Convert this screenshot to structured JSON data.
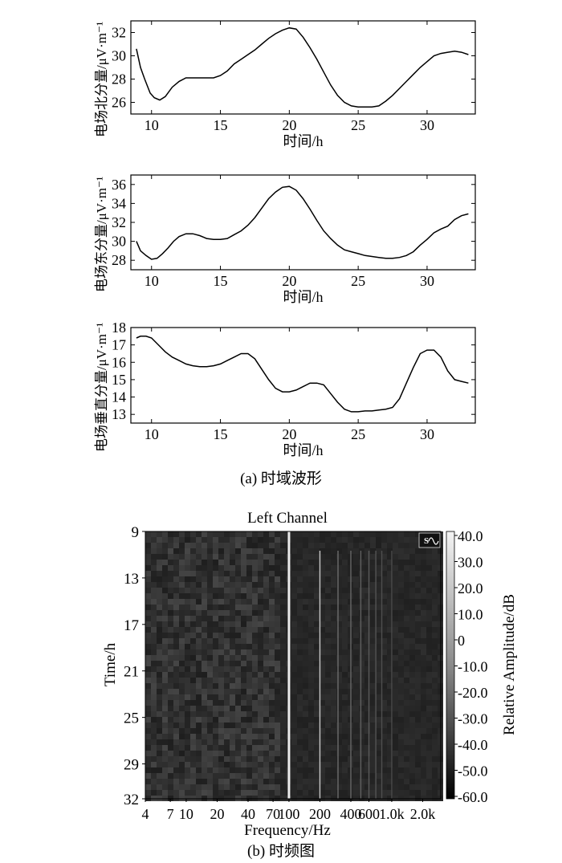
{
  "captions": {
    "a": "(a) 时域波形",
    "b": "(b) 时频图"
  },
  "chart_data": [
    {
      "type": "line",
      "xlabel": "时间/h",
      "ylabel": "电场北分量/μV·m⁻¹",
      "xlim": [
        8.5,
        33.5
      ],
      "ylim": [
        25,
        33
      ],
      "xticks": [
        10,
        15,
        20,
        25,
        30
      ],
      "yticks": [
        26,
        28,
        30,
        32
      ],
      "x": [
        8.9,
        9.2,
        9.5,
        9.9,
        10.2,
        10.6,
        11.0,
        11.5,
        12.0,
        12.5,
        13.0,
        13.5,
        14.0,
        14.5,
        15.0,
        15.5,
        16.0,
        16.5,
        17.0,
        17.5,
        18.0,
        18.5,
        19.0,
        19.5,
        20.0,
        20.5,
        21.0,
        21.5,
        22.0,
        22.5,
        23.0,
        23.5,
        24.0,
        24.5,
        25.0,
        25.5,
        26.0,
        26.5,
        27.0,
        27.5,
        28.0,
        28.5,
        29.0,
        29.5,
        30.0,
        30.5,
        31.0,
        31.5,
        32.0,
        32.5,
        33.0
      ],
      "y": [
        30.6,
        29.0,
        28.0,
        26.8,
        26.4,
        26.2,
        26.5,
        27.3,
        27.8,
        28.1,
        28.1,
        28.1,
        28.1,
        28.1,
        28.3,
        28.7,
        29.3,
        29.7,
        30.1,
        30.5,
        31.0,
        31.5,
        31.9,
        32.2,
        32.4,
        32.3,
        31.6,
        30.7,
        29.7,
        28.6,
        27.5,
        26.6,
        26.0,
        25.7,
        25.6,
        25.6,
        25.6,
        25.7,
        26.1,
        26.6,
        27.2,
        27.8,
        28.4,
        29.0,
        29.5,
        30.0,
        30.2,
        30.3,
        30.4,
        30.3,
        30.1
      ]
    },
    {
      "type": "line",
      "xlabel": "时间/h",
      "ylabel": "电场东分量/μV·m⁻¹",
      "xlim": [
        8.5,
        33.5
      ],
      "ylim": [
        27,
        37
      ],
      "xticks": [
        10,
        15,
        20,
        25,
        30
      ],
      "yticks": [
        28,
        30,
        32,
        34,
        36
      ],
      "x": [
        8.9,
        9.2,
        9.6,
        10.0,
        10.4,
        10.8,
        11.2,
        11.6,
        12.0,
        12.5,
        13.0,
        13.5,
        14.0,
        14.5,
        15.0,
        15.5,
        16.0,
        16.5,
        17.0,
        17.5,
        18.0,
        18.5,
        19.0,
        19.5,
        20.0,
        20.5,
        21.0,
        21.5,
        22.0,
        22.5,
        23.0,
        23.5,
        24.0,
        24.5,
        25.0,
        25.5,
        26.0,
        26.5,
        27.0,
        27.5,
        28.0,
        28.5,
        29.0,
        29.5,
        30.0,
        30.5,
        31.0,
        31.5,
        32.0,
        32.5,
        33.0
      ],
      "y": [
        30.0,
        29.0,
        28.5,
        28.1,
        28.2,
        28.7,
        29.3,
        30.0,
        30.5,
        30.8,
        30.8,
        30.6,
        30.3,
        30.2,
        30.2,
        30.3,
        30.7,
        31.1,
        31.7,
        32.5,
        33.5,
        34.5,
        35.2,
        35.7,
        35.8,
        35.4,
        34.5,
        33.4,
        32.2,
        31.1,
        30.3,
        29.6,
        29.1,
        28.9,
        28.7,
        28.5,
        28.4,
        28.3,
        28.2,
        28.2,
        28.3,
        28.5,
        28.9,
        29.6,
        30.2,
        30.9,
        31.3,
        31.6,
        32.3,
        32.7,
        32.9
      ]
    },
    {
      "type": "line",
      "xlabel": "时间/h",
      "ylabel": "电场垂直分量/μV·m⁻¹",
      "xlim": [
        8.5,
        33.5
      ],
      "ylim": [
        12.5,
        18
      ],
      "xticks": [
        10,
        15,
        20,
        25,
        30
      ],
      "yticks": [
        13,
        14,
        15,
        16,
        17,
        18
      ],
      "x": [
        8.9,
        9.2,
        9.6,
        10.0,
        10.5,
        11.0,
        11.5,
        12.0,
        12.5,
        13.0,
        13.5,
        14.0,
        14.5,
        15.0,
        15.5,
        16.0,
        16.5,
        17.0,
        17.5,
        18.0,
        18.5,
        19.0,
        19.5,
        20.0,
        20.5,
        21.0,
        21.5,
        22.0,
        22.5,
        23.0,
        23.5,
        24.0,
        24.5,
        25.0,
        25.5,
        26.0,
        26.5,
        27.0,
        27.5,
        28.0,
        28.5,
        29.0,
        29.5,
        30.0,
        30.5,
        31.0,
        31.5,
        32.0,
        32.5,
        33.0
      ],
      "y": [
        17.4,
        17.5,
        17.5,
        17.4,
        17.0,
        16.6,
        16.3,
        16.1,
        15.9,
        15.8,
        15.75,
        15.75,
        15.8,
        15.9,
        16.1,
        16.3,
        16.5,
        16.5,
        16.2,
        15.6,
        15.0,
        14.5,
        14.3,
        14.3,
        14.4,
        14.6,
        14.8,
        14.8,
        14.7,
        14.2,
        13.7,
        13.3,
        13.15,
        13.15,
        13.2,
        13.2,
        13.25,
        13.3,
        13.4,
        13.9,
        14.8,
        15.7,
        16.5,
        16.7,
        16.7,
        16.3,
        15.5,
        15.0,
        14.9,
        14.8
      ]
    },
    {
      "type": "heatmap",
      "title": "Left Channel",
      "xlabel": "Frequency/Hz",
      "ylabel": "Time/h",
      "colorbar_label": "Relative Amplitude/dB",
      "x_tick_labels": [
        "4",
        "7",
        "10",
        "20",
        "40",
        "70",
        "100",
        "200",
        "400",
        "600",
        "1.0k",
        "2.0k"
      ],
      "x_tick_values": [
        4,
        7,
        10,
        20,
        40,
        70,
        100,
        200,
        400,
        600,
        1000,
        2000
      ],
      "x_scale": "log",
      "xlim": [
        4,
        3000
      ],
      "y_tick_labels": [
        "9",
        "13",
        "17",
        "21",
        "25",
        "29",
        "32"
      ],
      "y_tick_values": [
        9,
        13,
        17,
        21,
        25,
        29,
        32
      ],
      "ylim": [
        9,
        32
      ],
      "colorbar_tick_labels": [
        "40.0",
        "30.0",
        "20.0",
        "10.0",
        "0",
        "-10.0",
        "-20.0",
        "-30.0",
        "-40.0",
        "-50.0",
        "-60.0"
      ],
      "colorbar_range": [
        -60,
        40
      ],
      "line_frequencies": [
        100,
        200,
        300,
        400,
        500,
        600,
        700,
        800,
        1000
      ],
      "badge": "S"
    }
  ]
}
